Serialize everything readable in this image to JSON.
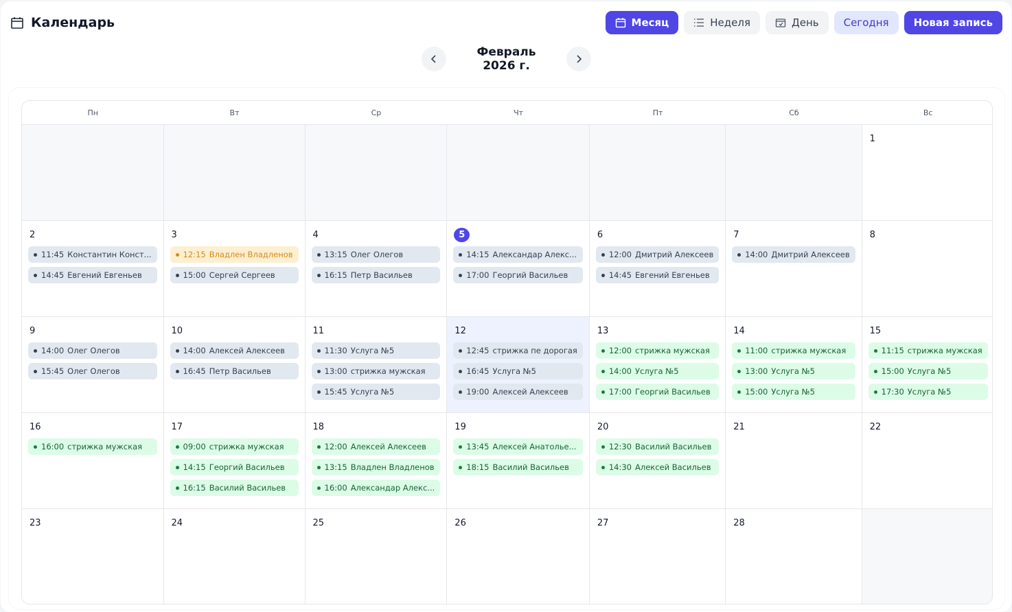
{
  "header": {
    "title": "Календарь",
    "icon": "calendar-icon"
  },
  "toolbar": {
    "month": "Месяц",
    "week": "Неделя",
    "day": "День",
    "today": "Сегодня",
    "new_entry": "Новая запись",
    "accent": "#4f46e5"
  },
  "nav": {
    "period": "Февраль 2026 г."
  },
  "weekdays": [
    "Пн",
    "Вт",
    "Ср",
    "Чт",
    "Пт",
    "Сб",
    "Вс"
  ],
  "event_colors": {
    "gray": "#e2e8f0",
    "orange": "#fdefcf",
    "green": "#dcfce7"
  },
  "cells": [
    {
      "day": ""
    },
    {
      "day": ""
    },
    {
      "day": ""
    },
    {
      "day": ""
    },
    {
      "day": ""
    },
    {
      "day": ""
    },
    {
      "day": "1",
      "events": []
    },
    {
      "day": "2",
      "events": [
        {
          "time": "11:45",
          "name": "Константин Конст...",
          "status": "gray"
        },
        {
          "time": "14:45",
          "name": "Евгений Евгеньев",
          "status": "gray"
        }
      ]
    },
    {
      "day": "3",
      "events": [
        {
          "time": "12:15",
          "name": "Владлен Владленов",
          "status": "orange"
        },
        {
          "time": "15:00",
          "name": "Сергей Сергеев",
          "status": "gray"
        }
      ]
    },
    {
      "day": "4",
      "events": [
        {
          "time": "13:15",
          "name": "Олег Олегов",
          "status": "gray"
        },
        {
          "time": "16:15",
          "name": "Петр Васильев",
          "status": "gray"
        }
      ]
    },
    {
      "day": "5",
      "today": true,
      "events": [
        {
          "time": "14:15",
          "name": "Александар Алекс...",
          "status": "gray"
        },
        {
          "time": "17:00",
          "name": "Георгий Васильев",
          "status": "gray"
        }
      ]
    },
    {
      "day": "6",
      "events": [
        {
          "time": "12:00",
          "name": "Дмитрий Алексеев",
          "status": "gray"
        },
        {
          "time": "14:45",
          "name": "Евгений Евгеньев",
          "status": "gray"
        }
      ]
    },
    {
      "day": "7",
      "events": [
        {
          "time": "14:00",
          "name": "Дмитрий Алексеев",
          "status": "gray"
        }
      ]
    },
    {
      "day": "8",
      "events": []
    },
    {
      "day": "9",
      "events": [
        {
          "time": "14:00",
          "name": "Олег Олегов",
          "status": "gray"
        },
        {
          "time": "15:45",
          "name": "Олег Олегов",
          "status": "gray"
        }
      ]
    },
    {
      "day": "10",
      "events": [
        {
          "time": "14:00",
          "name": "Алексей Алексеев",
          "status": "gray"
        },
        {
          "time": "16:45",
          "name": "Петр Васильев",
          "status": "gray"
        }
      ]
    },
    {
      "day": "11",
      "events": [
        {
          "time": "11:30",
          "name": "Услуга №5",
          "status": "gray"
        },
        {
          "time": "13:00",
          "name": "стрижка мужская",
          "status": "gray"
        },
        {
          "time": "15:45",
          "name": "Услуга №5",
          "status": "gray"
        }
      ]
    },
    {
      "day": "12",
      "selected": true,
      "events": [
        {
          "time": "12:45",
          "name": "стрижка пе дорогая",
          "status": "gray"
        },
        {
          "time": "16:45",
          "name": "Услуга №5",
          "status": "gray"
        },
        {
          "time": "19:00",
          "name": "Алексей Алексеев",
          "status": "gray"
        }
      ]
    },
    {
      "day": "13",
      "events": [
        {
          "time": "12:00",
          "name": "стрижка мужская",
          "status": "green"
        },
        {
          "time": "14:00",
          "name": "Услуга №5",
          "status": "green"
        },
        {
          "time": "17:00",
          "name": "Георгий Васильев",
          "status": "green"
        }
      ]
    },
    {
      "day": "14",
      "events": [
        {
          "time": "11:00",
          "name": "стрижка мужская",
          "status": "green"
        },
        {
          "time": "13:00",
          "name": "Услуга №5",
          "status": "green"
        },
        {
          "time": "15:00",
          "name": "Услуга №5",
          "status": "green"
        }
      ]
    },
    {
      "day": "15",
      "events": [
        {
          "time": "11:15",
          "name": "стрижка мужская",
          "status": "green"
        },
        {
          "time": "15:00",
          "name": "Услуга №5",
          "status": "green"
        },
        {
          "time": "17:30",
          "name": "Услуга №5",
          "status": "green"
        }
      ]
    },
    {
      "day": "16",
      "events": [
        {
          "time": "16:00",
          "name": "стрижка мужская",
          "status": "green"
        }
      ]
    },
    {
      "day": "17",
      "events": [
        {
          "time": "09:00",
          "name": "стрижка мужская",
          "status": "green"
        },
        {
          "time": "14:15",
          "name": "Георгий Васильев",
          "status": "green"
        },
        {
          "time": "16:15",
          "name": "Василий Васильев",
          "status": "green"
        }
      ]
    },
    {
      "day": "18",
      "events": [
        {
          "time": "12:00",
          "name": "Алексей Алексеев",
          "status": "green"
        },
        {
          "time": "13:15",
          "name": "Владлен Владленов",
          "status": "green"
        },
        {
          "time": "16:00",
          "name": "Александар Алекс...",
          "status": "green"
        }
      ]
    },
    {
      "day": "19",
      "events": [
        {
          "time": "13:45",
          "name": "Алексей Анатолье...",
          "status": "green"
        },
        {
          "time": "18:15",
          "name": "Василий Васильев",
          "status": "green"
        }
      ]
    },
    {
      "day": "20",
      "events": [
        {
          "time": "12:30",
          "name": "Василий Васильев",
          "status": "green"
        },
        {
          "time": "14:30",
          "name": "Алексей Васильев",
          "status": "green"
        }
      ]
    },
    {
      "day": "21",
      "events": []
    },
    {
      "day": "22",
      "events": []
    },
    {
      "day": "23",
      "events": []
    },
    {
      "day": "24",
      "events": []
    },
    {
      "day": "25",
      "events": []
    },
    {
      "day": "26",
      "events": []
    },
    {
      "day": "27",
      "events": []
    },
    {
      "day": "28",
      "events": []
    },
    {
      "day": ""
    }
  ]
}
